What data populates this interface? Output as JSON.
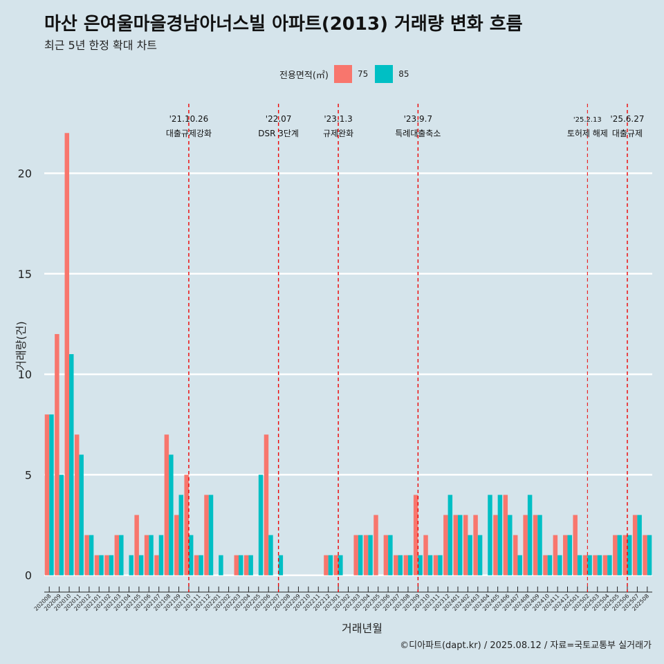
{
  "header": {
    "title": "마산 은여울마을경남아너스빌 아파트(2013) 거래량 변화 흐름",
    "subtitle": "최근 5년 한정 확대 차트"
  },
  "legend": {
    "title": "전용면적(㎡)",
    "items": [
      {
        "label": "75",
        "color": "#f8766d"
      },
      {
        "label": "85",
        "color": "#00bfc4"
      }
    ]
  },
  "caption": "©디아파트(dapt.kr) / 2025.08.12 / 자료=국토교통부 실거래가",
  "chart_data": {
    "type": "bar",
    "xlabel": "거래년월",
    "ylabel": "거래량(건)",
    "ylim": [
      -0.8,
      23.8
    ],
    "yticks": [
      0,
      5,
      10,
      15,
      20
    ],
    "grid": true,
    "legend_position": "top",
    "categories": [
      "202008",
      "202009",
      "202010",
      "202011",
      "202012",
      "202101",
      "202102",
      "202103",
      "202104",
      "202105",
      "202106",
      "202107",
      "202108",
      "202109",
      "202110",
      "202111",
      "202112",
      "202201",
      "202202",
      "202203",
      "202204",
      "202205",
      "202206",
      "202207",
      "202208",
      "202209",
      "202210",
      "202211",
      "202212",
      "202301",
      "202302",
      "202303",
      "202304",
      "202305",
      "202306",
      "202307",
      "202308",
      "202309",
      "202310",
      "202311",
      "202312",
      "202401",
      "202402",
      "202403",
      "202404",
      "202405",
      "202406",
      "202407",
      "202408",
      "202409",
      "202410",
      "202411",
      "202412",
      "202501",
      "202502",
      "202503",
      "202504",
      "202505",
      "202506",
      "202507",
      "202508"
    ],
    "series": [
      {
        "name": "75",
        "color": "#f8766d",
        "values": [
          8,
          12,
          22,
          7,
          2,
          1,
          1,
          2,
          0,
          3,
          2,
          1,
          7,
          3,
          5,
          1,
          4,
          0,
          0,
          1,
          1,
          0,
          7,
          0,
          0,
          0,
          0,
          0,
          1,
          1,
          0,
          2,
          2,
          3,
          2,
          1,
          1,
          4,
          2,
          1,
          3,
          3,
          3,
          3,
          0,
          3,
          4,
          2,
          3,
          3,
          1,
          2,
          2,
          3,
          1,
          1,
          1,
          2,
          2,
          3,
          2
        ]
      },
      {
        "name": "85",
        "color": "#00bfc4",
        "values": [
          8,
          5,
          11,
          6,
          2,
          1,
          1,
          2,
          1,
          1,
          2,
          2,
          6,
          4,
          2,
          1,
          4,
          1,
          0,
          1,
          1,
          5,
          2,
          1,
          0,
          0,
          0,
          0,
          1,
          1,
          0,
          2,
          2,
          0,
          2,
          1,
          1,
          1,
          1,
          1,
          4,
          3,
          2,
          2,
          4,
          4,
          3,
          1,
          4,
          3,
          1,
          1,
          2,
          1,
          1,
          1,
          1,
          2,
          2,
          3,
          2
        ]
      }
    ],
    "annotations": [
      {
        "category": "202110",
        "date": "'21.10.26",
        "label": "대출규제강화"
      },
      {
        "category": "202207",
        "date": "'22.07",
        "label": "DSR 3단계"
      },
      {
        "category": "202301",
        "date": "'23.1.3",
        "label": "규제완화"
      },
      {
        "category": "202309",
        "date": "'23.9.7",
        "label": "특례대출축소"
      },
      {
        "category": "202502",
        "date": "'25.2.13",
        "label": "토허제 해제"
      },
      {
        "category": "202506",
        "date": "'25.6.27",
        "label": "대출규제"
      }
    ]
  }
}
